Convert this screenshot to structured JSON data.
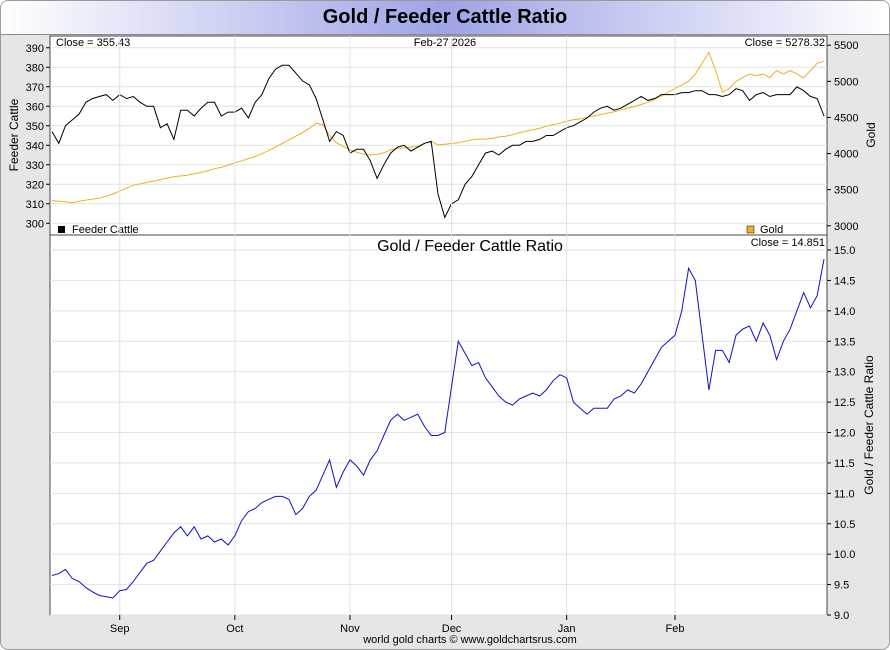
{
  "title": "Gold / Feeder Cattle Ratio",
  "footer": "world gold charts © www.goldchartsrus.com",
  "colors": {
    "cattle": "#000000",
    "gold": "#f0b020",
    "ratio": "#1010cc",
    "grid": "#e2e2e2",
    "panel_border": "#444444"
  },
  "chart_data": [
    {
      "type": "line",
      "header_left": "Close = 355.43",
      "header_center": "Feb-27  2026",
      "header_right": "Close = 5278.32",
      "ylabel_left": "Feeder Cattle",
      "ylabel_right": "Gold",
      "ylim_left": [
        295,
        395
      ],
      "ylim_right": [
        2900,
        5600
      ],
      "yticks_left": [
        "300",
        "310",
        "320",
        "330",
        "340",
        "350",
        "360",
        "370",
        "380",
        "390"
      ],
      "yticks_right": [
        "3000",
        "3500",
        "4000",
        "4500",
        "5000",
        "5500"
      ],
      "legend_left": "Feeder Cattle",
      "legend_right": "Gold",
      "series": [
        {
          "name": "Feeder Cattle",
          "axis": "left",
          "values": [
            347,
            341,
            350,
            353,
            356,
            362,
            364,
            365,
            366,
            363,
            366,
            364,
            365,
            362,
            360,
            360,
            349,
            351,
            343,
            358,
            358,
            355,
            359,
            362,
            362,
            355,
            357,
            357,
            359,
            354,
            362,
            366,
            374,
            379,
            381,
            381,
            377,
            373,
            371,
            364,
            353,
            342,
            347,
            345,
            336,
            338,
            338,
            332,
            323,
            330,
            336,
            339,
            340,
            337,
            339,
            341,
            342,
            315,
            303,
            310,
            312,
            320,
            324,
            330,
            336,
            337,
            335,
            338,
            340,
            340,
            342,
            342,
            343,
            345,
            345,
            347,
            349,
            350,
            352,
            354,
            357,
            359,
            360,
            358,
            359,
            361,
            363,
            365,
            363,
            364,
            366,
            366,
            366,
            367,
            367,
            368,
            368,
            366,
            366,
            365,
            366,
            369,
            368,
            363,
            366,
            367,
            365,
            366,
            366,
            366,
            370,
            368,
            365,
            364,
            355
          ]
        },
        {
          "name": "Gold",
          "axis": "right",
          "values": [
            3350,
            3340,
            3330,
            3320,
            3340,
            3355,
            3370,
            3380,
            3410,
            3440,
            3480,
            3520,
            3560,
            3580,
            3600,
            3620,
            3640,
            3660,
            3680,
            3690,
            3700,
            3720,
            3740,
            3760,
            3790,
            3810,
            3840,
            3870,
            3900,
            3930,
            3960,
            4000,
            4040,
            4090,
            4140,
            4190,
            4240,
            4290,
            4350,
            4420,
            4400,
            4250,
            4150,
            4100,
            4050,
            4020,
            3990,
            3980,
            3990,
            4010,
            4050,
            4070,
            4080,
            4090,
            4100,
            4140,
            4170,
            4120,
            4130,
            4140,
            4150,
            4170,
            4190,
            4200,
            4200,
            4210,
            4230,
            4240,
            4260,
            4290,
            4310,
            4330,
            4350,
            4380,
            4400,
            4420,
            4450,
            4470,
            4480,
            4500,
            4520,
            4540,
            4560,
            4580,
            4600,
            4630,
            4650,
            4680,
            4710,
            4750,
            4800,
            4850,
            4900,
            4950,
            5000,
            5100,
            5250,
            5400,
            5150,
            4850,
            4900,
            5000,
            5050,
            5100,
            5080,
            5100,
            5050,
            5150,
            5100,
            5150,
            5100,
            5050,
            5150,
            5250,
            5278
          ]
        }
      ]
    },
    {
      "type": "line",
      "title": "Gold  /  Feeder Cattle Ratio",
      "header_right": "Close = 14.851",
      "ylabel_right": "Gold / Feeder Cattle Ratio",
      "ylim": [
        9.0,
        15.0
      ],
      "yticks": [
        "9.0",
        "9.5",
        "10.0",
        "10.5",
        "11.0",
        "11.5",
        "12.0",
        "12.5",
        "13.0",
        "13.5",
        "14.0",
        "14.5",
        "15.0"
      ],
      "xticks": [
        "Sep",
        "Oct",
        "Nov",
        "Dec",
        "Jan",
        "Feb"
      ],
      "xtick_index": [
        10,
        27,
        44,
        59,
        76,
        92
      ],
      "series": [
        {
          "name": "",
          "values": [
            9.65,
            9.68,
            9.75,
            9.6,
            9.55,
            9.45,
            9.38,
            9.32,
            9.3,
            9.28,
            9.4,
            9.42,
            9.55,
            9.7,
            9.85,
            9.9,
            10.05,
            10.2,
            10.35,
            10.45,
            10.3,
            10.45,
            10.25,
            10.3,
            10.2,
            10.25,
            10.15,
            10.3,
            10.55,
            10.7,
            10.75,
            10.85,
            10.9,
            10.95,
            10.95,
            10.9,
            10.65,
            10.75,
            10.95,
            11.05,
            11.3,
            11.55,
            11.1,
            11.35,
            11.55,
            11.45,
            11.3,
            11.55,
            11.7,
            11.95,
            12.2,
            12.3,
            12.2,
            12.25,
            12.3,
            12.1,
            11.95,
            11.95,
            12.0,
            12.75,
            13.5,
            13.3,
            13.1,
            13.15,
            12.9,
            12.75,
            12.6,
            12.5,
            12.45,
            12.55,
            12.6,
            12.65,
            12.6,
            12.7,
            12.85,
            12.95,
            12.9,
            12.5,
            12.4,
            12.3,
            12.4,
            12.4,
            12.4,
            12.55,
            12.6,
            12.7,
            12.65,
            12.8,
            13.0,
            13.2,
            13.4,
            13.5,
            13.6,
            14.0,
            14.7,
            14.5,
            13.6,
            12.7,
            13.35,
            13.35,
            13.15,
            13.6,
            13.7,
            13.75,
            13.5,
            13.8,
            13.6,
            13.2,
            13.5,
            13.7,
            14.0,
            14.3,
            14.05,
            14.25,
            14.85
          ]
        }
      ]
    }
  ]
}
